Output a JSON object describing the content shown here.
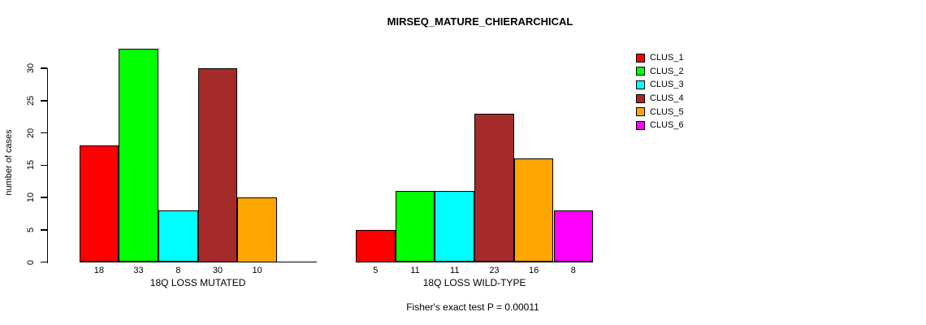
{
  "chart_data": {
    "type": "bar",
    "title": "MIRSEQ_MATURE_CHIERARCHICAL",
    "ylabel": "number of cases",
    "xlabel": "",
    "ylim": [
      0,
      30
    ],
    "yticks": [
      0,
      5,
      10,
      15,
      20,
      25,
      30
    ],
    "grid": false,
    "legend_position": "right",
    "legend": [
      {
        "label": "CLUS_1",
        "color": "#FF0000"
      },
      {
        "label": "CLUS_2",
        "color": "#00FF00"
      },
      {
        "label": "CLUS_3",
        "color": "#00FFFF"
      },
      {
        "label": "CLUS_4",
        "color": "#A52A2A"
      },
      {
        "label": "CLUS_5",
        "color": "#FFA500"
      },
      {
        "label": "CLUS_6",
        "color": "#FF00FF"
      }
    ],
    "groups": [
      {
        "label": "18Q LOSS MUTATED",
        "values": [
          18,
          33,
          8,
          30,
          10,
          0
        ],
        "bar_labels": [
          "18",
          "33",
          "8",
          "30",
          "10",
          ""
        ]
      },
      {
        "label": "18Q LOSS WILD-TYPE",
        "values": [
          5,
          11,
          11,
          23,
          16,
          8
        ],
        "bar_labels": [
          "5",
          "11",
          "11",
          "23",
          "16",
          "8"
        ]
      }
    ],
    "annotation": "Fisher's exact test P = 0.00011",
    "colors": {
      "background": "#FFFFFF",
      "axis": "#000000",
      "text": "#000000"
    }
  }
}
